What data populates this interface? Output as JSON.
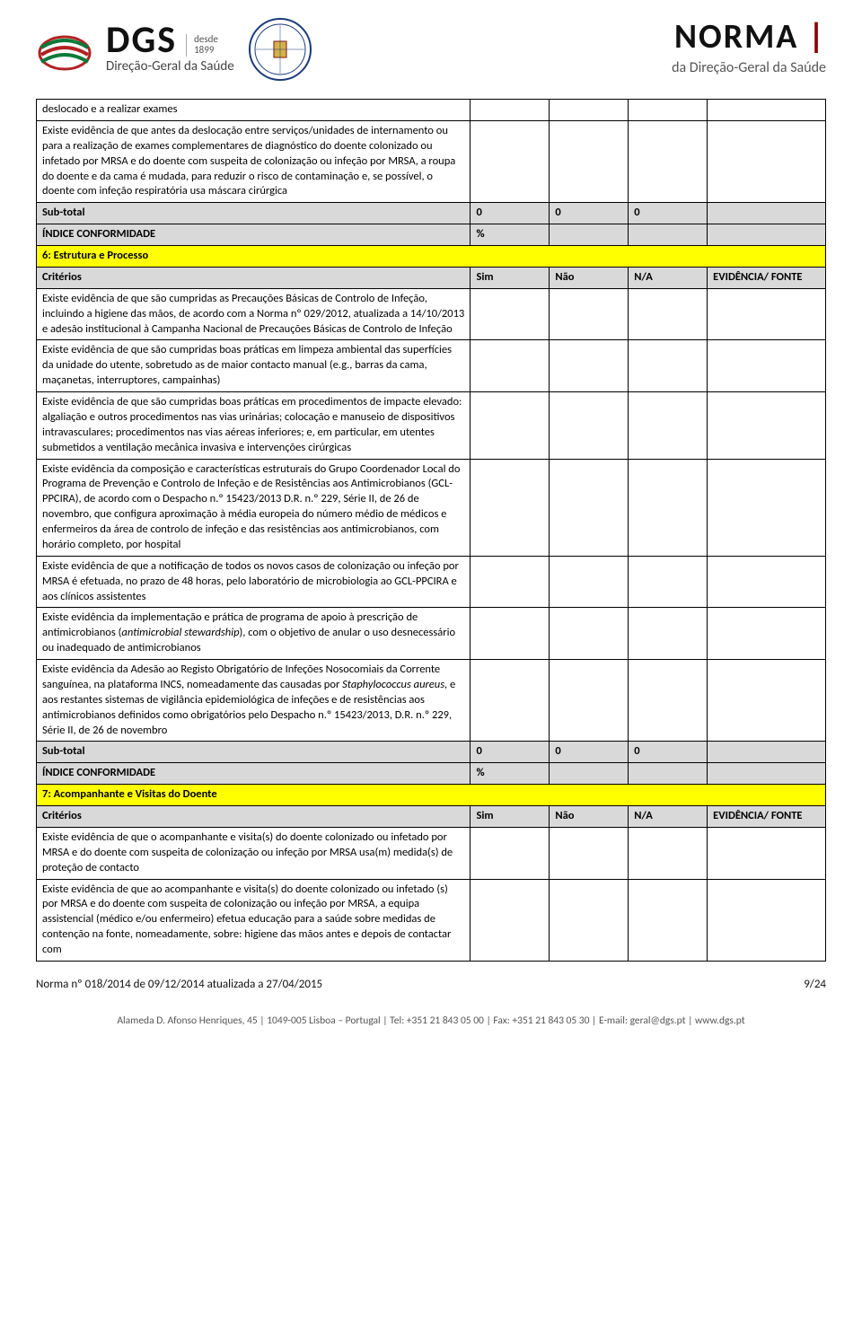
{
  "header": {
    "dgs": {
      "brand": "DGS",
      "desde": "desde",
      "year": "1899",
      "subtitle": "Direção-Geral da Saúde"
    },
    "norma": {
      "title": "NORMA",
      "subtitle": "da Direção-Geral da Saúde"
    }
  },
  "table": {
    "intro_rows": [
      "deslocado e a realizar exames",
      "Existe evidência de que antes da deslocação entre serviços/unidades de internamento ou para a realização de exames complementares de diagnóstico do doente colonizado ou infetado por MRSA e do doente com suspeita de colonização ou infeção por MRSA, a roupa do doente e da cama é mudada, para reduzir o risco de contaminação e, se possível, o doente com infeção respiratória usa máscara cirúrgica"
    ],
    "subtotal_label": "Sub-total",
    "subtotal_values": [
      "0",
      "0",
      "0",
      ""
    ],
    "indice_label": "ÍNDICE CONFORMIDADE",
    "indice_value": "%",
    "section6": {
      "title": "6: Estrutura e Processo",
      "criterios_label": "Critérios",
      "headers": [
        "Sim",
        "Não",
        "N/A",
        "EVIDÊNCIA/ FONTE"
      ],
      "rows": [
        "Existe evidência de que são cumpridas as Precauções Básicas de Controlo de Infeção, incluindo a higiene das mãos, de acordo com a Norma nº 029/2012, atualizada a 14/10/2013 e adesão institucional à Campanha Nacional de Precauções Básicas de Controlo de Infeção",
        "Existe evidência de que são cumpridas boas práticas em limpeza ambiental das superfícies da unidade do utente, sobretudo as de maior contacto manual (e.g., barras da cama, maçanetas, interruptores, campainhas)",
        "Existe evidência de que são cumpridas boas práticas em procedimentos de impacte elevado: algaliação e outros procedimentos nas vias urinárias; colocação e manuseio de dispositivos intravasculares; procedimentos nas vias aéreas inferiores; e, em particular, em utentes submetidos a ventilação mecânica invasiva e intervenções cirúrgicas",
        "Existe evidência da composição e características estruturais do Grupo Coordenador Local do Programa de Prevenção e Controlo de Infeção e de Resistências aos Antimicrobianos (GCL-PPCIRA), de acordo com o Despacho n.º 15423/2013 D.R. n.º 229, Série II, de 26 de novembro, que configura aproximação à média europeia do número médio de médicos e enfermeiros da área de controlo de infeção e das resistências aos antimicrobianos, com horário completo, por hospital",
        "Existe evidência de que a notificação de todos os novos casos de colonização ou infeção por MRSA é efetuada, no prazo de 48 horas, pelo laboratório de microbiologia ao GCL-PPCIRA e aos clínicos assistentes",
        "Existe evidência da implementação e prática de programa de apoio à prescrição de antimicrobianos (<i>antimicrobial stewardship</i>), com o objetivo de anular o uso desnecessário ou inadequado de antimicrobianos",
        "Existe evidência da Adesão ao Registo Obrigatório de Infeções Nosocomiais da Corrente sanguínea, na plataforma INCS, nomeadamente das causadas por <i>Staphylococcus aureus,</i> e aos restantes sistemas de vigilância epidemiológica de infeções e de resistências aos antimicrobianos definidos como obrigatórios pelo Despacho n.º 15423/2013, D.R. n.º 229, Série II, de 26 de novembro"
      ],
      "subtotal_values": [
        "0",
        "0",
        "0",
        ""
      ],
      "indice_value": "%"
    },
    "section7": {
      "title": "7: Acompanhante e Visitas do Doente",
      "criterios_label": "Critérios",
      "headers": [
        "Sim",
        "Não",
        "N/A",
        "EVIDÊNCIA/ FONTE"
      ],
      "rows": [
        "Existe evidência de que o acompanhante e visita(s) do doente colonizado ou infetado por MRSA e do doente com suspeita de colonização ou infeção por MRSA usa(m) medida(s) de proteção de contacto",
        "Existe evidência de que ao acompanhante e visita(s) do doente colonizado ou infetado (s) por MRSA e do doente com suspeita de colonização ou infeção por MRSA, a equipa assistencial (médico e/ou enfermeiro) efetua educação para a saúde sobre medidas de contenção na fonte, nomeadamente, sobre: higiene das mãos antes e depois de contactar com"
      ]
    }
  },
  "footer": {
    "left": "Norma nº 018/2014 de 09/12/2014 atualizada a 27/04/2015",
    "right": "9/24",
    "contact": "Alameda D. Afonso Henriques, 45 | 1049-005 Lisboa – Portugal | Tel: +351 21 843 05 00 | Fax: +351 21 843 05 30 | E-mail: geral@dgs.pt | www.dgs.pt"
  }
}
